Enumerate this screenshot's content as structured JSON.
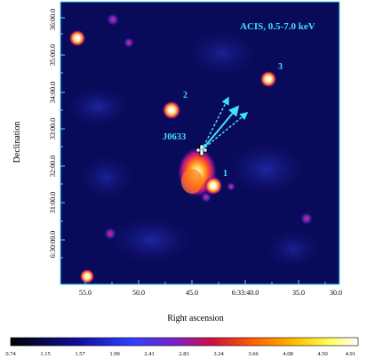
{
  "title": "ACIS, 0.5-7.0 keV",
  "axes": {
    "xlabel": "Right ascension",
    "ylabel": "Declination",
    "x_ticks": [
      "55.0",
      "50.0",
      "45.0",
      "6:33:40.0",
      "35.0",
      "30.0"
    ],
    "y_ticks": [
      "36:00.0",
      "35:00.0",
      "34:00.0",
      "33:00.0",
      "32:00.0",
      "31:00.0",
      "6:30:00.0"
    ]
  },
  "annotations": {
    "source_label": "J0633",
    "star_labels": [
      "1",
      "2",
      "3"
    ]
  },
  "colorbar": {
    "ticks": [
      "0.74",
      "1.15",
      "1.57",
      "1.99",
      "2.41",
      "2.83",
      "3.24",
      "3.66",
      "4.08",
      "4.50",
      "4.91"
    ]
  },
  "colors": {
    "annotation": "#40e0ff",
    "background_map": "#0a0a5a",
    "frame": "#40e0ff"
  }
}
